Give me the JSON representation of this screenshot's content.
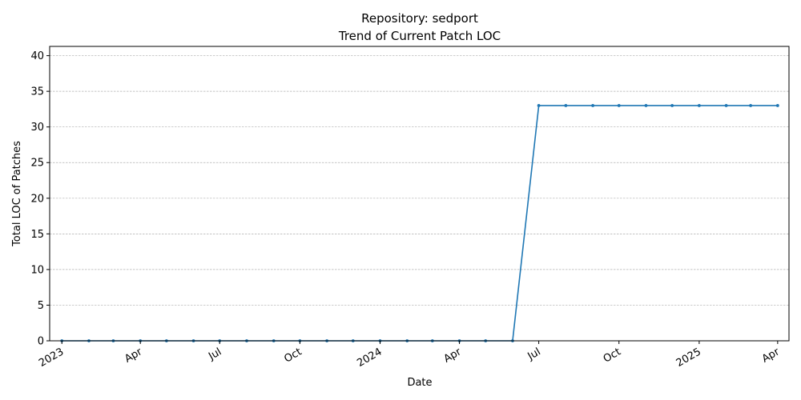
{
  "chart_data": {
    "type": "line",
    "title": "Repository: sedport",
    "subtitle": "Trend of Current Patch LOC",
    "xlabel": "Date",
    "ylabel": "Total LOC of Patches",
    "ylim": [
      0,
      41.3
    ],
    "yticks": [
      0,
      5,
      10,
      15,
      20,
      25,
      30,
      35,
      40
    ],
    "xlim": [
      "2022-12-18",
      "2025-04-14"
    ],
    "xticks": [
      {
        "date": "2023-01-01",
        "label": "2023"
      },
      {
        "date": "2023-04-01",
        "label": "Apr"
      },
      {
        "date": "2023-07-01",
        "label": "Jul"
      },
      {
        "date": "2023-10-01",
        "label": "Oct"
      },
      {
        "date": "2024-01-01",
        "label": "2024"
      },
      {
        "date": "2024-04-01",
        "label": "Apr"
      },
      {
        "date": "2024-07-01",
        "label": "Jul"
      },
      {
        "date": "2024-10-01",
        "label": "Oct"
      },
      {
        "date": "2025-01-01",
        "label": "2025"
      },
      {
        "date": "2025-04-01",
        "label": "Apr"
      }
    ],
    "grid": "y-dashed",
    "color": "#1f77b4",
    "series": [
      {
        "x": [
          "2023-01-01",
          "2023-02-01",
          "2023-03-01",
          "2023-04-01",
          "2023-05-01",
          "2023-06-01",
          "2023-07-01",
          "2023-08-01",
          "2023-09-01",
          "2023-10-01",
          "2023-11-01",
          "2023-12-01",
          "2024-01-01",
          "2024-02-01",
          "2024-03-01",
          "2024-04-01",
          "2024-05-01",
          "2024-06-01",
          "2024-07-01",
          "2024-08-01",
          "2024-09-01",
          "2024-10-01",
          "2024-11-01",
          "2024-12-01",
          "2025-01-01",
          "2025-02-01",
          "2025-03-01",
          "2025-04-01"
        ],
        "values": [
          0,
          0,
          0,
          0,
          0,
          0,
          0,
          0,
          0,
          0,
          0,
          0,
          0,
          0,
          0,
          0,
          0,
          0,
          33,
          33,
          33,
          33,
          33,
          33,
          33,
          33,
          33,
          33
        ]
      }
    ]
  }
}
